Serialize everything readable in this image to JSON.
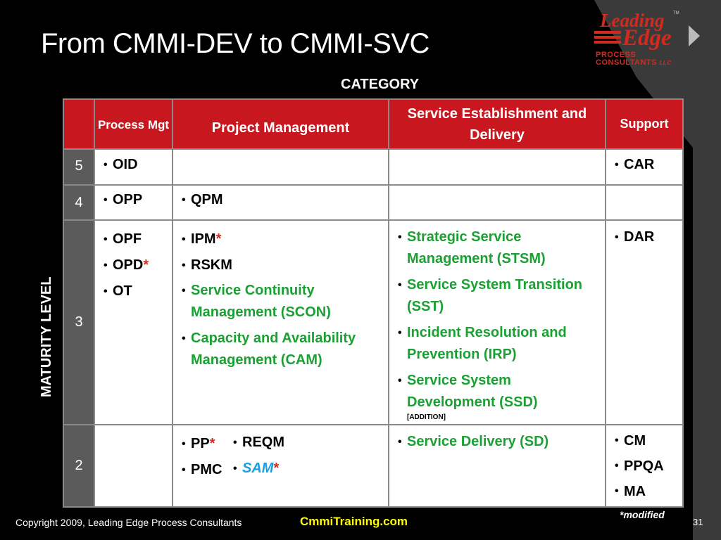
{
  "slide": {
    "title": "From CMMI-DEV to CMMI-SVC",
    "category_label": "CATEGORY",
    "maturity_label": "MATURITY LEVEL",
    "modified_note": "*modified",
    "copyright": "Copyright 2009, Leading Edge Process Consultants",
    "website": "CmmiTraining.com",
    "page_number": "31"
  },
  "logo": {
    "line1": "Leading",
    "trademark": "TM",
    "line2": "Edge",
    "line3": "PROCESS",
    "line4": "CONSULTANTS",
    "llc": "LLC"
  },
  "headers": {
    "process_mgt": "Process Mgt",
    "project_management": "Project  Management",
    "service_est": "Service Establishment and Delivery",
    "support": "Support"
  },
  "levels": [
    "5",
    "4",
    "3",
    "2"
  ],
  "cells": {
    "l5_process": [
      "OID"
    ],
    "l5_support": [
      "CAR"
    ],
    "l4_process": [
      "OPP"
    ],
    "l4_project": [
      "QPM"
    ],
    "l3_process": [
      "OPF",
      "OPD",
      "OT"
    ],
    "l3_process_star": "*",
    "l3_project": [
      "IPM",
      "RSKM"
    ],
    "l3_project_star": "*",
    "l3_project_new": [
      "Service Continuity Management (SCON)",
      "Capacity and Availability Management (CAM)"
    ],
    "l3_service": [
      "Strategic Service Management (STSM)",
      "Service System Transition (SST)",
      "Incident Resolution and Prevention (IRP)",
      "Service System Development (SSD)"
    ],
    "l3_service_addition": "[ADDITION]",
    "l3_support": [
      "DAR"
    ],
    "l2_project_col1": [
      "PP",
      "PMC"
    ],
    "l2_project_star": "*",
    "l2_project_col2": [
      "REQM",
      "SAM"
    ],
    "l2_service": [
      "Service Delivery (SD)"
    ],
    "l2_support": [
      "CM",
      "PPQA",
      "MA"
    ]
  },
  "colors": {
    "header_red": "#c8171e",
    "level_gray": "#5b5b5b",
    "new_green": "#1aa033",
    "sam_blue": "#1aa0e0",
    "accent_red": "#d42a1e",
    "footer_yellow": "#ffff00"
  }
}
